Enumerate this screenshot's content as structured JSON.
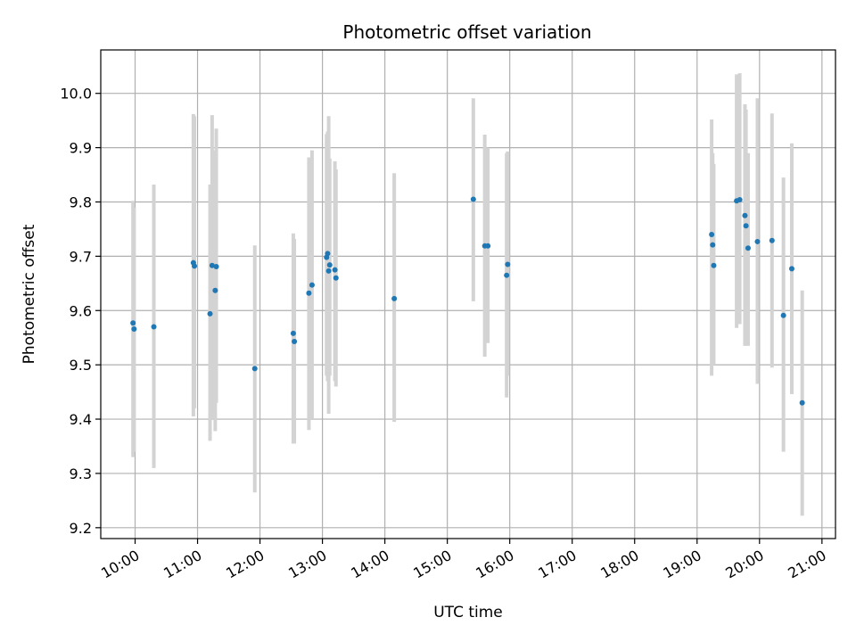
{
  "chart_data": {
    "type": "scatter",
    "title": "Photometric offset variation",
    "xlabel": "UTC time",
    "ylabel": "Photometric offset",
    "x_ticks": [
      "10:00",
      "11:00",
      "12:00",
      "13:00",
      "14:00",
      "15:00",
      "16:00",
      "17:00",
      "18:00",
      "19:00",
      "20:00",
      "21:00"
    ],
    "y_ticks": [
      9.2,
      9.3,
      9.4,
      9.5,
      9.6,
      9.7,
      9.8,
      9.9,
      10.0
    ],
    "xlim": [
      "09:27",
      "21:13"
    ],
    "ylim": [
      9.18,
      10.08
    ],
    "grid": true,
    "point_color": "#1f77b4",
    "errorbar_color": "#d3d3d3",
    "points": [
      {
        "t": "09:58",
        "y": 9.577,
        "lo": 9.33,
        "hi": 9.802
      },
      {
        "t": "09:59",
        "y": 9.566,
        "lo": 9.34,
        "hi": 9.79
      },
      {
        "t": "10:18",
        "y": 9.57,
        "lo": 9.31,
        "hi": 9.832
      },
      {
        "t": "10:56",
        "y": 9.688,
        "lo": 9.405,
        "hi": 9.962
      },
      {
        "t": "10:57",
        "y": 9.682,
        "lo": 9.42,
        "hi": 9.958
      },
      {
        "t": "11:12",
        "y": 9.594,
        "lo": 9.36,
        "hi": 9.832
      },
      {
        "t": "11:14",
        "y": 9.683,
        "lo": 9.4,
        "hi": 9.96
      },
      {
        "t": "11:17",
        "y": 9.637,
        "lo": 9.378,
        "hi": 9.895
      },
      {
        "t": "11:18",
        "y": 9.681,
        "lo": 9.43,
        "hi": 9.935
      },
      {
        "t": "11:55",
        "y": 9.493,
        "lo": 9.265,
        "hi": 9.72
      },
      {
        "t": "12:32",
        "y": 9.558,
        "lo": 9.355,
        "hi": 9.742
      },
      {
        "t": "12:33",
        "y": 9.543,
        "lo": 9.355,
        "hi": 9.732
      },
      {
        "t": "12:47",
        "y": 9.632,
        "lo": 9.38,
        "hi": 9.882
      },
      {
        "t": "12:50",
        "y": 9.647,
        "lo": 9.4,
        "hi": 9.895
      },
      {
        "t": "13:04",
        "y": 9.698,
        "lo": 9.48,
        "hi": 9.925
      },
      {
        "t": "13:05",
        "y": 9.705,
        "lo": 9.47,
        "hi": 9.93
      },
      {
        "t": "13:06",
        "y": 9.673,
        "lo": 9.41,
        "hi": 9.958
      },
      {
        "t": "13:07",
        "y": 9.684,
        "lo": 9.48,
        "hi": 9.88
      },
      {
        "t": "13:12",
        "y": 9.675,
        "lo": 9.47,
        "hi": 9.875
      },
      {
        "t": "13:13",
        "y": 9.66,
        "lo": 9.46,
        "hi": 9.86
      },
      {
        "t": "14:09",
        "y": 9.622,
        "lo": 9.395,
        "hi": 9.853
      },
      {
        "t": "15:25",
        "y": 9.805,
        "lo": 9.617,
        "hi": 9.991
      },
      {
        "t": "15:36",
        "y": 9.719,
        "lo": 9.515,
        "hi": 9.924
      },
      {
        "t": "15:39",
        "y": 9.719,
        "lo": 9.54,
        "hi": 9.9
      },
      {
        "t": "15:57",
        "y": 9.665,
        "lo": 9.44,
        "hi": 9.89
      },
      {
        "t": "15:58",
        "y": 9.685,
        "lo": 9.48,
        "hi": 9.893
      },
      {
        "t": "19:14",
        "y": 9.74,
        "lo": 9.48,
        "hi": 9.952
      },
      {
        "t": "19:15",
        "y": 9.721,
        "lo": 9.55,
        "hi": 9.89
      },
      {
        "t": "19:16",
        "y": 9.683,
        "lo": 9.5,
        "hi": 9.87
      },
      {
        "t": "19:38",
        "y": 9.802,
        "lo": 9.568,
        "hi": 10.035
      },
      {
        "t": "19:41",
        "y": 9.804,
        "lo": 9.575,
        "hi": 10.037
      },
      {
        "t": "19:46",
        "y": 9.775,
        "lo": 9.535,
        "hi": 9.98
      },
      {
        "t": "19:47",
        "y": 9.756,
        "lo": 9.54,
        "hi": 9.97
      },
      {
        "t": "19:49",
        "y": 9.715,
        "lo": 9.535,
        "hi": 9.89
      },
      {
        "t": "19:58",
        "y": 9.727,
        "lo": 9.465,
        "hi": 9.991
      },
      {
        "t": "20:12",
        "y": 9.729,
        "lo": 9.495,
        "hi": 9.963
      },
      {
        "t": "20:23",
        "y": 9.591,
        "lo": 9.34,
        "hi": 9.845
      },
      {
        "t": "20:31",
        "y": 9.677,
        "lo": 9.446,
        "hi": 9.908
      },
      {
        "t": "20:41",
        "y": 9.43,
        "lo": 9.222,
        "hi": 9.637
      }
    ]
  }
}
